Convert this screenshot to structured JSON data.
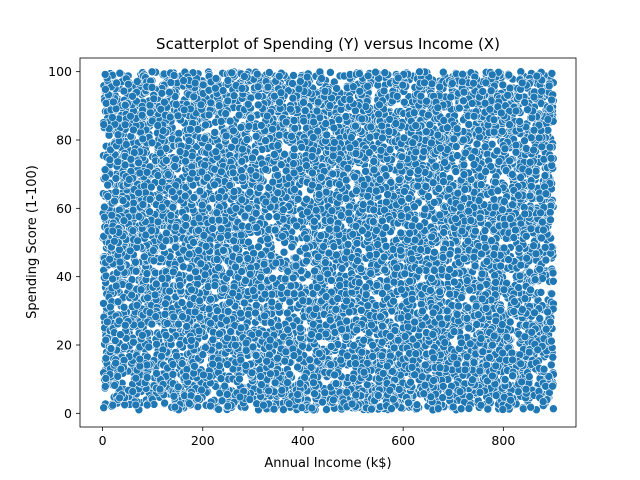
{
  "chart_data": {
    "type": "scatter",
    "title": "Scatterplot of Spending (Y) versus Income (X)",
    "xlabel": "Annual Income (k$)",
    "ylabel": "Spending Score (1-100)",
    "xlim": [
      -45,
      945
    ],
    "ylim": [
      -4,
      104
    ],
    "xticks": [
      0,
      200,
      400,
      600,
      800
    ],
    "yticks": [
      0,
      20,
      40,
      60,
      80,
      100
    ],
    "grid": false,
    "series": [
      {
        "marker_color": "#1f77b4",
        "marker_edge_color": "#ffffff",
        "x_range": [
          1,
          900
        ],
        "y_range": [
          1,
          100
        ],
        "distribution": "uniform dense fill across full range"
      }
    ]
  }
}
